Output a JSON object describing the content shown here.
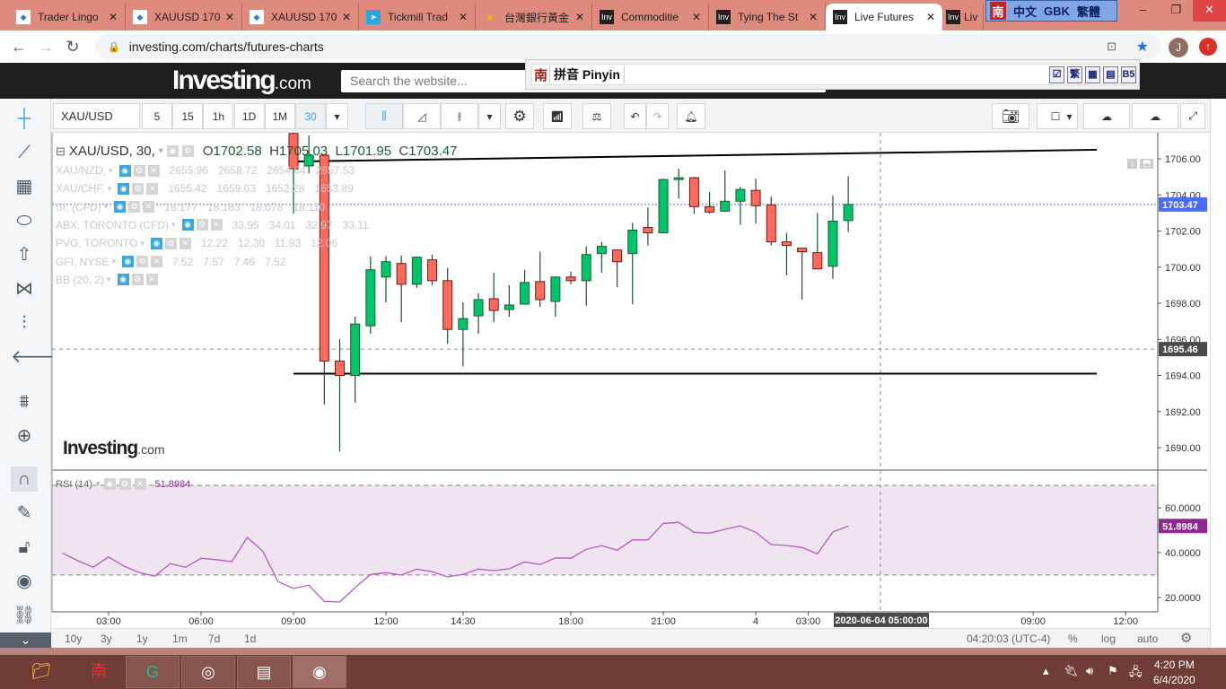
{
  "browser": {
    "tabs": [
      {
        "title": "Trader Lingo",
        "icon": "blue-diamond-icon"
      },
      {
        "title": "XAUUSD 170",
        "icon": "blue-diamond-icon"
      },
      {
        "title": "XAUUSD 170",
        "icon": "blue-diamond-icon"
      },
      {
        "title": "Tickmill Trad",
        "icon": "telegram-icon"
      },
      {
        "title": "台灣銀行黃金",
        "icon": "gem-icon"
      },
      {
        "title": "Commoditie",
        "icon": "inv-icon"
      },
      {
        "title": "Tying The St",
        "icon": "inv-icon"
      },
      {
        "title": "Live Futures",
        "icon": "inv-icon",
        "active": true
      },
      {
        "title": "Liv",
        "icon": "inv-icon"
      }
    ],
    "url": "investing.com/charts/futures-charts",
    "avatar": "J",
    "ime_top": {
      "nan": "南",
      "lang": "中文",
      "enc": "GBK",
      "trad": "繁體"
    },
    "pinyin": {
      "nan": "南",
      "label": "拼音 Pinyin",
      "icons": [
        "☑",
        "繁",
        "▦",
        "▤",
        "B5"
      ]
    }
  },
  "site": {
    "logo": "Investing",
    ".com": ".com",
    "logo_suffix": ".com",
    "search_placeholder": "Search the website..."
  },
  "toolbar": {
    "symbol": "XAU/USD",
    "intervals": [
      "5",
      "15",
      "1h",
      "1D",
      "1M",
      "30"
    ],
    "active_interval": "30"
  },
  "legend": {
    "main": {
      "symbol": "XAU/USD, 30,",
      "o_label": "O",
      "o": "1702.58",
      "h_label": "H",
      "h": "1705.03",
      "l_label": "L",
      "l": "1701.95",
      "c_label": "C",
      "c": "1703.47"
    },
    "overlays": [
      {
        "name": "XAU/NZD,",
        "values": [
          "2655.96",
          "2658.72",
          "2654.64",
          "2657.53"
        ]
      },
      {
        "name": "XAU/CHF,",
        "values": [
          "1655.42",
          "1659.03",
          "1652.28",
          "1653.89"
        ]
      },
      {
        "name": "SI, (CFD)",
        "values": [
          "18.177",
          "18.183",
          "18.078",
          "18.110"
        ]
      },
      {
        "name": "ABX, TORONTO (CFD)",
        "values": [
          "33.95",
          "34.01",
          "32.97",
          "33.11"
        ]
      },
      {
        "name": "PVG, TORONTO",
        "values": [
          "12.22",
          "12.30",
          "11.93",
          "12.06"
        ]
      },
      {
        "name": "GFI, NYSE",
        "values": [
          "7.52",
          "7.57",
          "7.46",
          "7.52"
        ]
      },
      {
        "name": "BB (20, 2)",
        "values": []
      }
    ],
    "rsi": {
      "name": "RSI (14)",
      "value": "51.8984"
    }
  },
  "watermark": {
    "text": "Investing",
    "suffix": ".com"
  },
  "chart_data": [
    {
      "type": "candlestick",
      "series_name": "XAU/USD, 30",
      "interval_minutes": 30,
      "start_time": "2020-06-03 09:00",
      "ylim": [
        1689,
        1707.5
      ],
      "y_ticks": [
        "1706.00",
        "1704.00",
        "1702.00",
        "1700.00",
        "1698.00",
        "1696.00",
        "1694.00",
        "1692.00",
        "1690.00"
      ],
      "ohlc": [
        [
          1707.4,
          1708.0,
          1702.97,
          1705.45
        ],
        [
          1705.6,
          1707.3,
          1705.2,
          1706.2
        ],
        [
          1706.2,
          1706.2,
          1692.4,
          1694.8
        ],
        [
          1694.8,
          1696.0,
          1689.8,
          1694.0
        ],
        [
          1694.0,
          1697.25,
          1692.5,
          1696.85
        ],
        [
          1696.75,
          1700.6,
          1696.3,
          1699.85
        ],
        [
          1699.45,
          1700.6,
          1698.05,
          1700.3
        ],
        [
          1700.2,
          1700.65,
          1696.95,
          1699.05
        ],
        [
          1699.05,
          1700.55,
          1698.85,
          1700.55
        ],
        [
          1700.4,
          1700.7,
          1699.0,
          1699.25
        ],
        [
          1699.25,
          1699.95,
          1695.75,
          1696.55
        ],
        [
          1696.55,
          1698.05,
          1694.5,
          1697.15
        ],
        [
          1697.3,
          1698.55,
          1696.3,
          1698.2
        ],
        [
          1698.25,
          1699.7,
          1696.95,
          1697.6
        ],
        [
          1697.65,
          1699.0,
          1697.25,
          1697.9
        ],
        [
          1697.95,
          1699.85,
          1697.95,
          1699.15
        ],
        [
          1699.2,
          1700.85,
          1697.8,
          1698.2
        ],
        [
          1698.1,
          1699.5,
          1697.25,
          1699.45
        ],
        [
          1699.45,
          1699.75,
          1699.05,
          1699.25
        ],
        [
          1699.25,
          1701.15,
          1697.85,
          1700.7
        ],
        [
          1700.75,
          1701.4,
          1699.7,
          1701.15
        ],
        [
          1700.95,
          1700.95,
          1698.9,
          1700.3
        ],
        [
          1700.75,
          1702.45,
          1697.95,
          1702.05
        ],
        [
          1702.2,
          1703.3,
          1701.2,
          1701.9
        ],
        [
          1701.9,
          1704.9,
          1701.9,
          1704.85
        ],
        [
          1704.85,
          1705.45,
          1703.8,
          1704.95
        ],
        [
          1704.95,
          1705.0,
          1702.95,
          1703.35
        ],
        [
          1703.35,
          1704.15,
          1702.95,
          1703.05
        ],
        [
          1703.1,
          1705.35,
          1703.05,
          1703.65
        ],
        [
          1703.65,
          1704.45,
          1702.35,
          1704.3
        ],
        [
          1704.25,
          1704.9,
          1702.4,
          1703.4
        ],
        [
          1703.45,
          1703.9,
          1701.2,
          1701.4
        ],
        [
          1701.4,
          1701.9,
          1699.55,
          1701.2
        ],
        [
          1701.05,
          1701.05,
          1698.2,
          1700.85
        ],
        [
          1700.8,
          1703.0,
          1699.9,
          1699.9
        ],
        [
          1700.05,
          1703.95,
          1699.35,
          1702.55
        ],
        [
          1702.58,
          1705.03,
          1701.95,
          1703.47
        ]
      ],
      "last_price_label": "1703.47",
      "crosshair_price_label": "1695.46",
      "trendlines": [
        {
          "from": 1705.85,
          "to": 1706.5
        },
        {
          "from": 1694.1,
          "to": 1694.1
        }
      ],
      "colors": {
        "up": "#00c46a",
        "down": "#ff6a5f",
        "wick": "#1c4f2e",
        "last_price": "#4a6cf7"
      }
    },
    {
      "type": "line",
      "series_name": "RSI (14)",
      "ylim": [
        13,
        75
      ],
      "levels": [
        70,
        30
      ],
      "y_ticks": [
        "60.0000",
        "40.0000",
        "20.0000"
      ],
      "last_value_label": "51.8984",
      "start_time": "2020-06-03 01:30",
      "values": [
        39.9,
        36.4,
        33.5,
        38.1,
        34,
        31.1,
        29.5,
        35.1,
        33.5,
        37.5,
        36.9,
        36,
        46.8,
        40.7,
        27.1,
        24,
        25.5,
        18.3,
        18,
        24.4,
        30.3,
        31.1,
        30,
        32.7,
        31.5,
        29.2,
        30.3,
        32.7,
        32,
        32.8,
        35.9,
        34.7,
        37.7,
        37.5,
        41.5,
        43.1,
        41.1,
        45.7,
        45.7,
        53.1,
        53.5,
        49.1,
        48.7,
        50.4,
        51.9,
        49.1,
        43.6,
        43.2,
        42.3,
        39.5,
        49.2,
        51.9
      ],
      "color": "#b45cc0",
      "band_color": "#f1e4f1"
    }
  ],
  "time_axis": {
    "ticks": [
      "03:00",
      "06:00",
      "09:00",
      "12:00",
      "14:30",
      "18:00",
      "21:00",
      "4",
      "03:00",
      "09:00",
      "12:00"
    ],
    "crosshair_label": "2020-06-04 05:00:00"
  },
  "rangebar": {
    "ranges": [
      "10y",
      "3y",
      "1y",
      "1m",
      "7d",
      "1d"
    ],
    "time": "04:20:03 (UTC-4)",
    "percent": "%",
    "log": "log",
    "auto": "auto"
  },
  "taskbar": {
    "time": "4:20 PM",
    "date": "6/4/2020"
  }
}
